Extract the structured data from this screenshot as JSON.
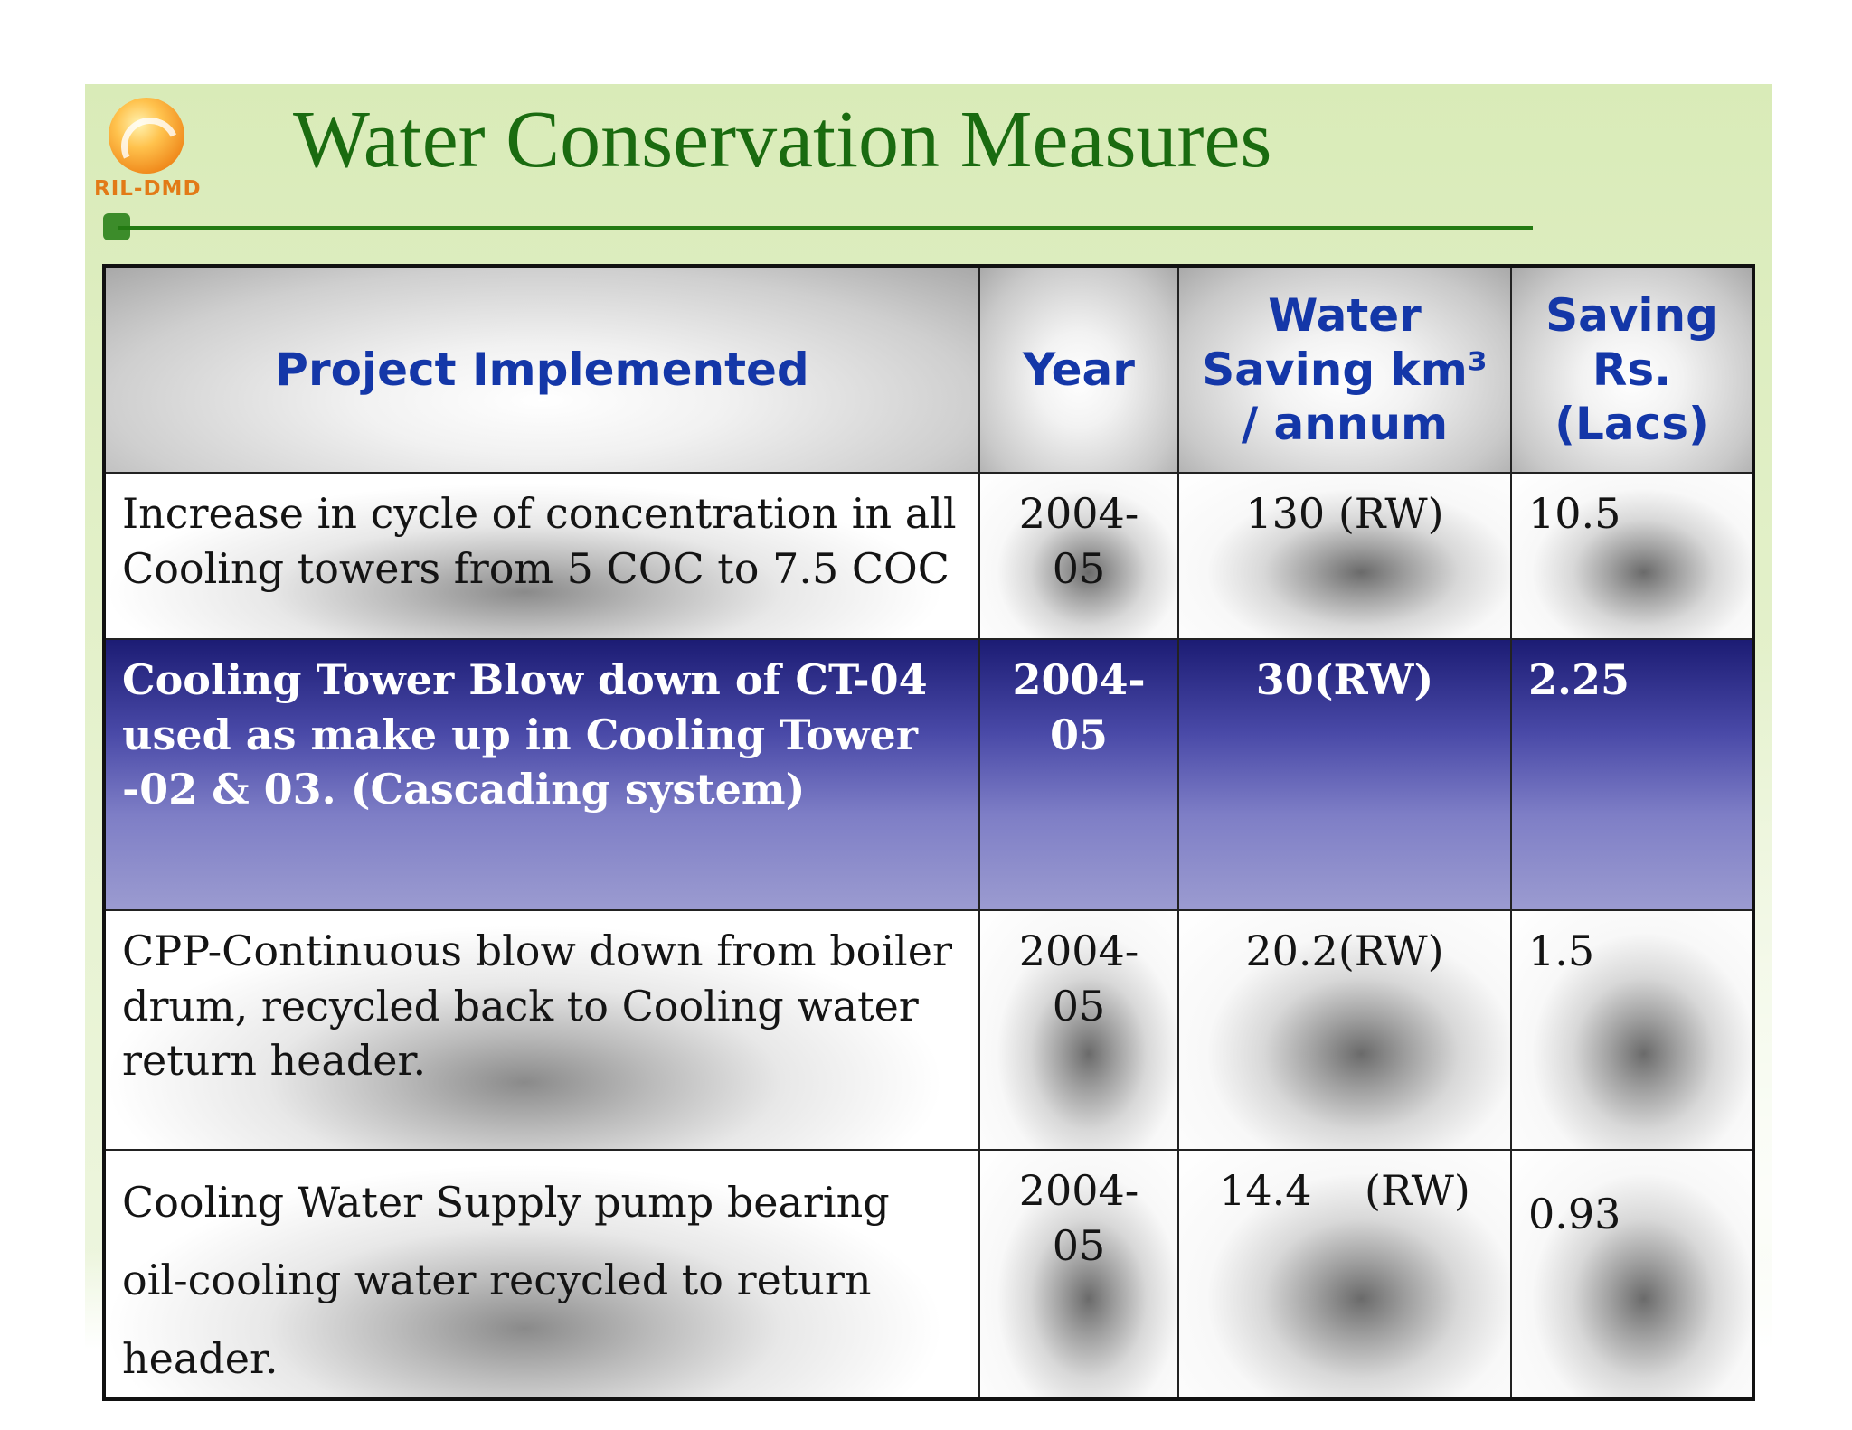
{
  "logo": {
    "text": "RIL-DMD",
    "icon": "ril-sun-swirl-icon"
  },
  "title": "Water Conservation Measures",
  "colors": {
    "title": "#1a6b10",
    "header_text": "#1437a8",
    "highlight_top": "#1c1c74",
    "highlight_bottom": "#9b9bd0",
    "logo_text": "#e27a17"
  },
  "table": {
    "headers": {
      "project": "Project Implemented",
      "year": "Year",
      "water_saving_line1": "Water",
      "water_saving_line2": "Saving km³",
      "water_saving_line3": "/ annum",
      "saving_line1": "Saving",
      "saving_line2": "Rs.",
      "saving_line3": "(Lacs)"
    },
    "rows": [
      {
        "project": "Increase in cycle of concentration in all Cooling towers from 5 COC to 7.5 COC",
        "year": "2004-05",
        "water_saving": "130 (RW)",
        "saving": "10.5"
      },
      {
        "project": "Cooling Tower Blow down of CT-04 used as make up in Cooling Tower -02 & 03. (Cascading system)",
        "year": "2004-05",
        "water_saving": "30(RW)",
        "saving": "2.25"
      },
      {
        "project": "CPP-Continuous blow down from boiler drum, recycled back to Cooling water return header.",
        "year": "2004-05",
        "water_saving": "20.2(RW)",
        "saving": "1.5"
      },
      {
        "project": "Cooling Water Supply pump bearing oil-cooling water recycled to return header.",
        "year": "2004-05",
        "water_saving": "14.4    (RW)",
        "saving": "0.93"
      }
    ]
  }
}
